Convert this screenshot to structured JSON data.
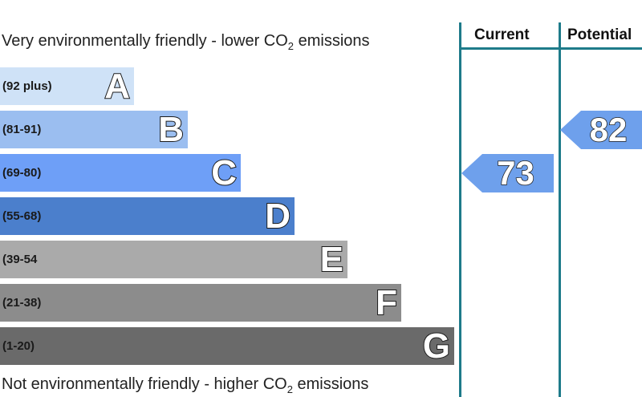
{
  "header_text": {
    "before": "Very environmentally friendly - lower CO",
    "sub": "2",
    "after": " emissions"
  },
  "footer_text": {
    "before": "Not environmentally friendly - higher CO",
    "sub": "2",
    "after": " emissions"
  },
  "columns": {
    "current": "Current",
    "potential": "Potential"
  },
  "chart_data": {
    "type": "bar",
    "categories": [
      "A",
      "B",
      "C",
      "D",
      "E",
      "F",
      "G"
    ],
    "ranges": [
      "(92 plus)",
      "(81-91)",
      "(69-80)",
      "(55-68)",
      "(39-54",
      "(21-38)",
      "(1-20)"
    ],
    "colors": [
      "#cfe2f7",
      "#9bbef0",
      "#6e9ff7",
      "#4b7fcc",
      "#aaaaaa",
      "#8c8c8c",
      "#6a6a6a"
    ],
    "current": 73,
    "potential": 82,
    "current_band": "C",
    "potential_band": "B",
    "marker_color": "#6ea0ec"
  }
}
